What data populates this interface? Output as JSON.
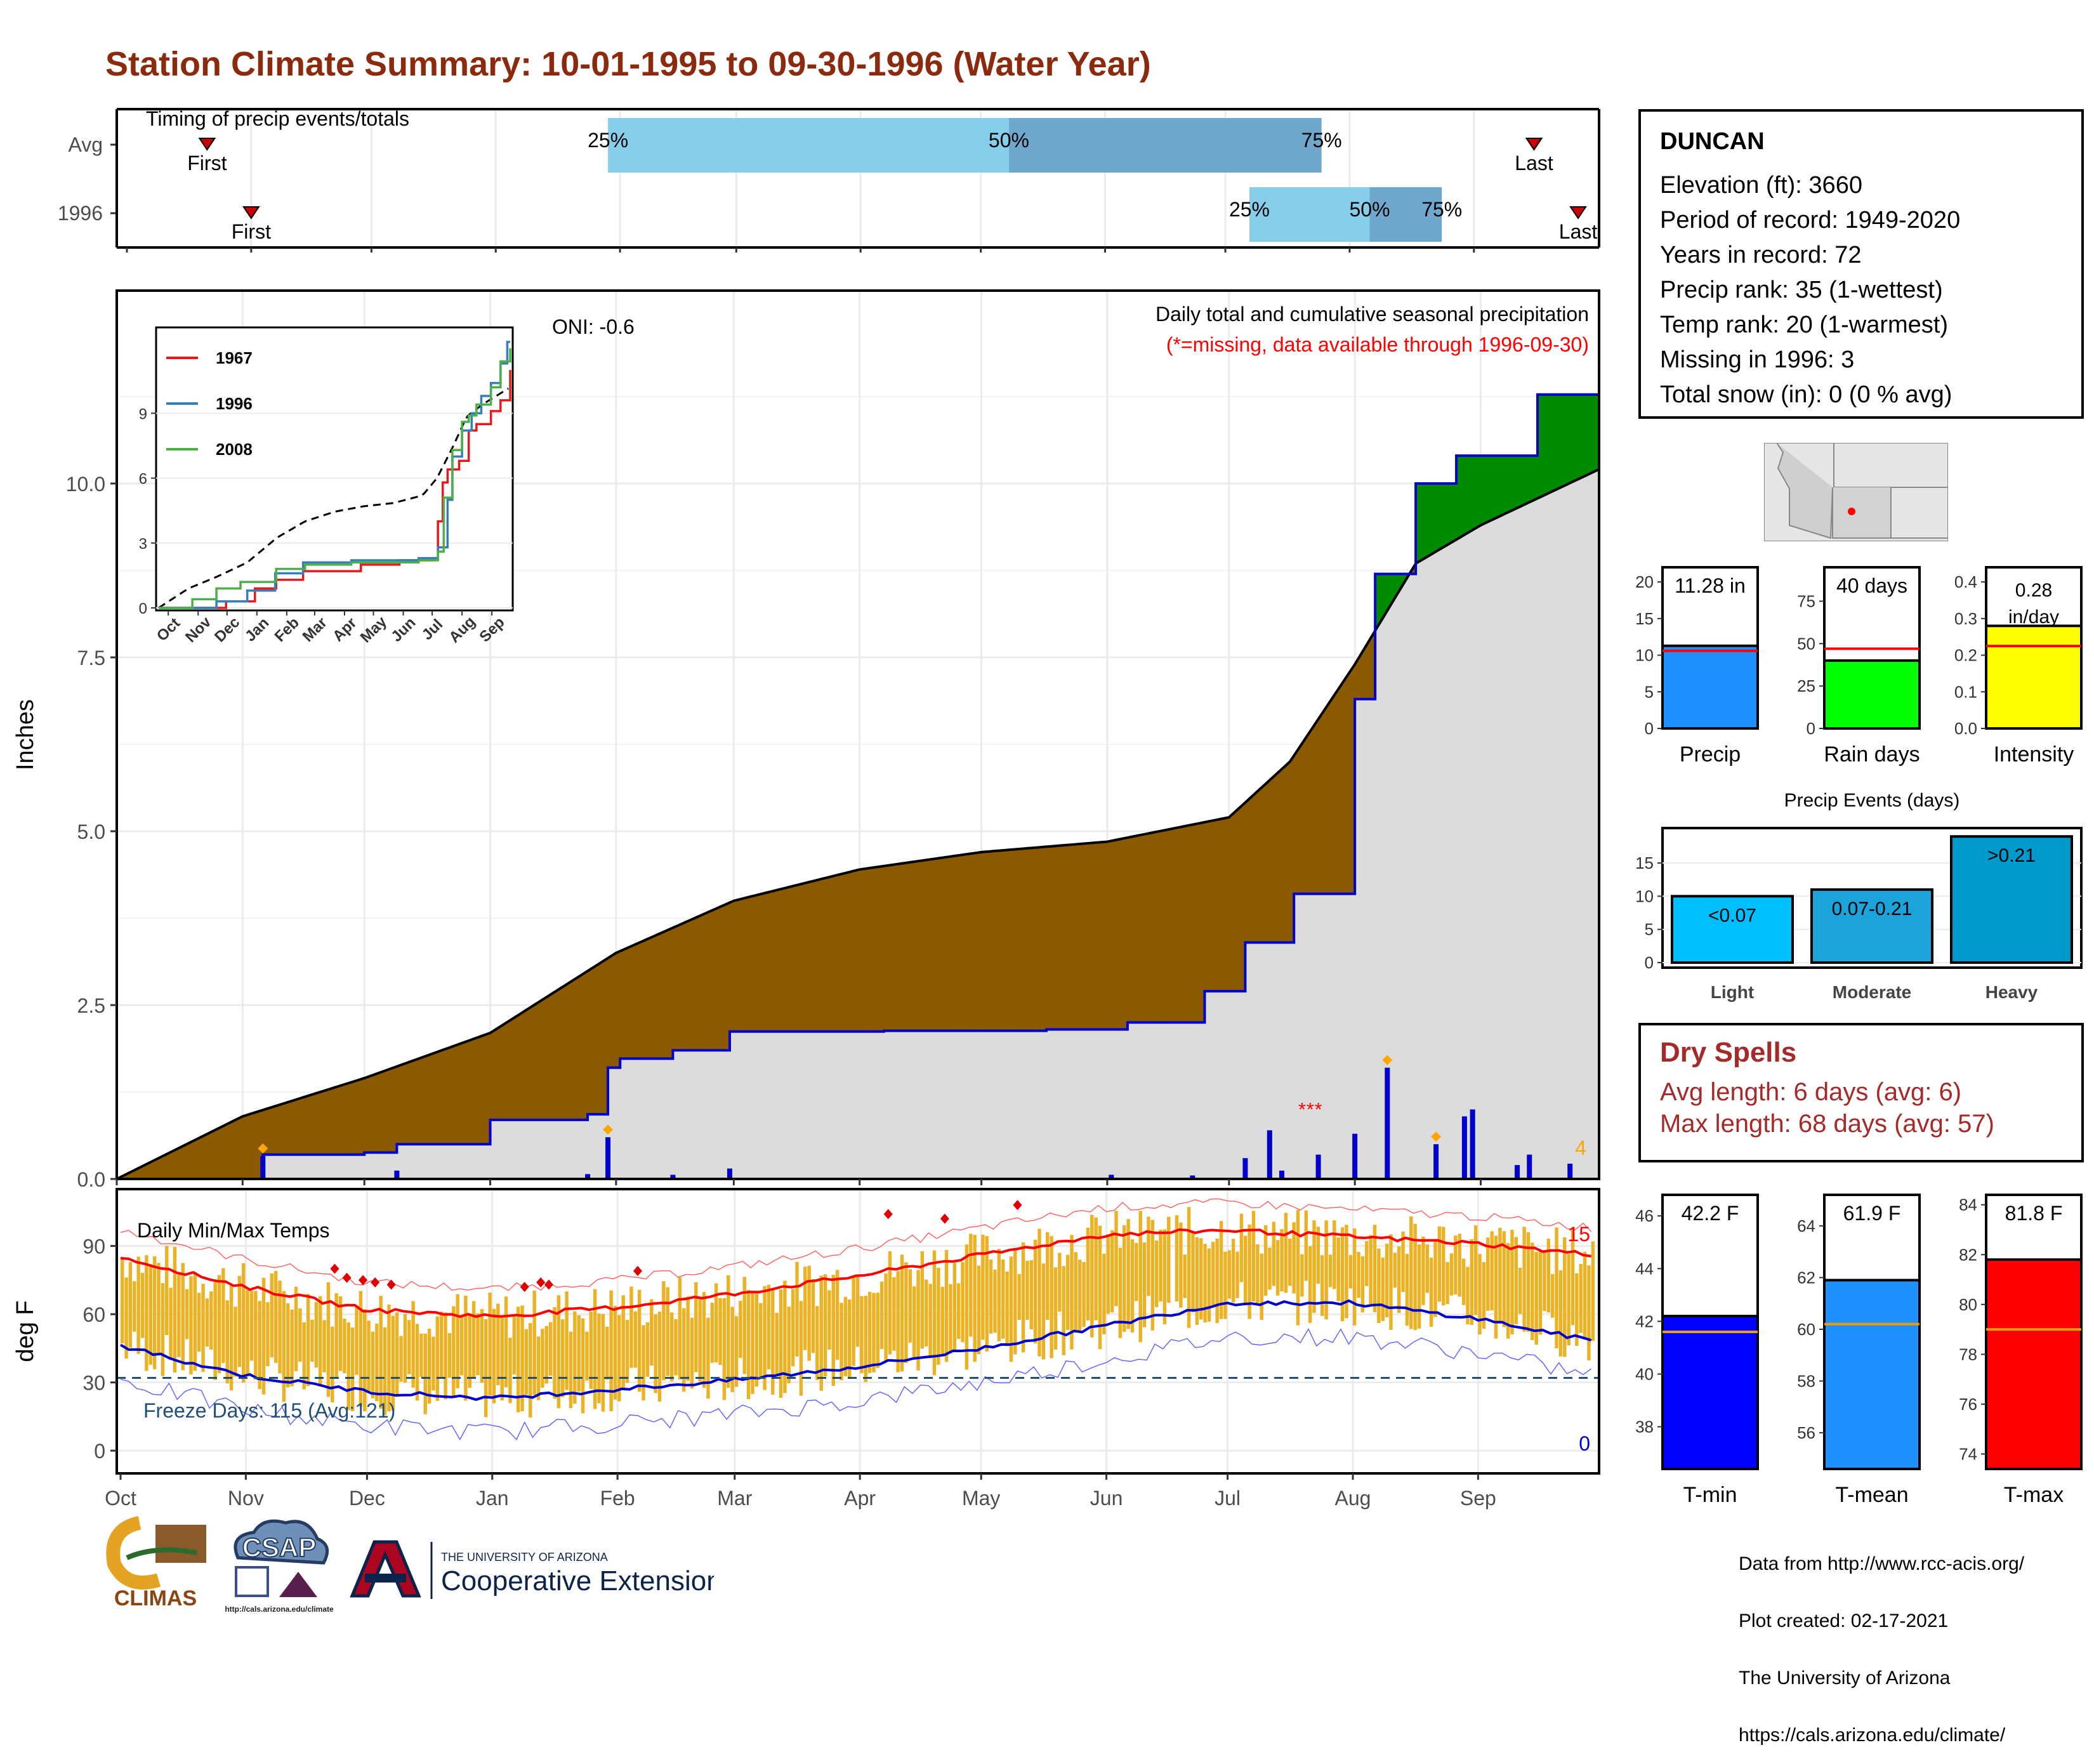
{
  "title": "Station Climate Summary: 10-01-1995 to 09-30-1996 (Water Year)",
  "timing": {
    "header": "Timing of precip events/totals",
    "rows": [
      {
        "label": "Avg",
        "first_label": "First",
        "last_label": "Last",
        "first_day": 20,
        "last_day": 351,
        "p25": 120,
        "p50": 220,
        "p75": 298
      },
      {
        "label": "1996",
        "first_label": "First",
        "last_label": "Last",
        "first_day": 31,
        "last_day": 362,
        "p25": 280,
        "p50": 310,
        "p75": 328
      }
    ],
    "pct_labels": [
      "25%",
      "50%",
      "75%"
    ],
    "colors": {
      "light": "#87CEEB",
      "dark": "#6FA8CC",
      "marker": "#CC0000"
    }
  },
  "precip": {
    "ylabel": "Inches",
    "yticks": [
      "0.0",
      "2.5",
      "5.0",
      "7.5",
      "10.0"
    ],
    "oni": "ONI: -0.6",
    "header": "Daily total and cumulative seasonal precipitation",
    "subheader": "(*=missing, data available through 1996-09-30)",
    "count_label": "4",
    "colors": {
      "deficit": "#8B5A00",
      "surplus": "#008B00",
      "cum": "#0000CC",
      "avg": "#000000",
      "fill": "#DCDCDC",
      "marker": "#FFA500",
      "missing": "#FF0000"
    }
  },
  "inset": {
    "xticks": [
      "Oct",
      "Nov",
      "Dec",
      "Jan",
      "Feb",
      "Mar",
      "Apr",
      "May",
      "Jun",
      "Jul",
      "Aug",
      "Sep"
    ],
    "yticks": [
      "0",
      "3",
      "6",
      "9"
    ],
    "legend": [
      {
        "label": "1967",
        "color": "#E41A1C"
      },
      {
        "label": "1996",
        "color": "#377EB8"
      },
      {
        "label": "2008",
        "color": "#4DAF4A"
      }
    ]
  },
  "temps": {
    "ylabel": "deg F",
    "header": "Daily Min/Max Temps",
    "yticks": [
      "0",
      "30",
      "60",
      "90"
    ],
    "freeze_label": "Freeze Days: 115 (Avg:121)",
    "hot_count": "15",
    "cold_count": "0",
    "months": [
      "Oct",
      "Nov",
      "Dec",
      "Jan",
      "Feb",
      "Mar",
      "Apr",
      "May",
      "Jun",
      "Jul",
      "Aug",
      "Sep"
    ]
  },
  "station": {
    "name": "DUNCAN",
    "lines": [
      "Elevation (ft): 3660",
      "Period of record: 1949-2020",
      "Years in record: 72",
      "Precip rank: 35 (1-wettest)",
      "Temp rank: 20 (1-warmest)",
      "Missing in 1996: 3",
      "Total snow (in): 0 (0 % avg)"
    ]
  },
  "minibars": [
    {
      "label": "Precip",
      "value_label": "11.28 in",
      "value": 11.28,
      "avg": 10.6,
      "ymax": 22,
      "ticks": [
        "0",
        "5",
        "10",
        "15",
        "20"
      ],
      "tickvals": [
        0,
        5,
        10,
        15,
        20
      ],
      "color": "#1E90FF"
    },
    {
      "label": "Rain days",
      "value_label": "40 days",
      "value": 40,
      "avg": 47,
      "ymax": 95,
      "ticks": [
        "0",
        "25",
        "50",
        "75"
      ],
      "tickvals": [
        0,
        25,
        50,
        75
      ],
      "color": "#00FF00"
    },
    {
      "label": "Intensity",
      "value_label": "0.28 in/day",
      "value": 0.28,
      "avg": 0.225,
      "ymax": 0.44,
      "ticks": [
        "0.0",
        "0.1",
        "0.2",
        "0.3",
        "0.4"
      ],
      "tickvals": [
        0,
        0.1,
        0.2,
        0.3,
        0.4
      ],
      "color": "#FFFF00"
    }
  ],
  "events": {
    "title": "Precip Events (days)",
    "categories": [
      "Light",
      "Moderate",
      "Heavy"
    ],
    "bar_labels": [
      "<0.07",
      "0.07-0.21",
      ">0.21"
    ],
    "values": [
      10,
      11,
      19
    ],
    "yticks": [
      "0",
      "5",
      "10",
      "15"
    ],
    "colors": [
      "#00BFFF",
      "#1CA3DA",
      "#0099CC"
    ]
  },
  "dry_spells": {
    "title": "Dry Spells",
    "avg_length": "Avg length: 6 days (avg: 6)",
    "max_length": "Max length: 68 days (avg: 57)"
  },
  "tempbars": [
    {
      "label": "T-min",
      "value_label": "42.2 F",
      "value": 42.2,
      "avg": 41.6,
      "ymin": 36.4,
      "ymax": 46.8,
      "ticks": [
        "38",
        "40",
        "42",
        "44",
        "46"
      ],
      "tickvals": [
        38,
        40,
        42,
        44,
        46
      ],
      "color": "#0000FF"
    },
    {
      "label": "T-mean",
      "value_label": "61.9 F",
      "value": 61.9,
      "avg": 60.2,
      "ymin": 54.6,
      "ymax": 65.2,
      "ticks": [
        "56",
        "58",
        "60",
        "62",
        "64"
      ],
      "tickvals": [
        56,
        58,
        60,
        62,
        64
      ],
      "color": "#1E90FF"
    },
    {
      "label": "T-max",
      "value_label": "81.8 F",
      "value": 81.8,
      "avg": 79.0,
      "ymin": 73.4,
      "ymax": 84.4,
      "ticks": [
        "74",
        "76",
        "78",
        "80",
        "82",
        "84"
      ],
      "tickvals": [
        74,
        76,
        78,
        80,
        82,
        84
      ],
      "color": "#FF0000"
    }
  ],
  "credits": {
    "lines": [
      "Data from http://www.rcc-acis.org/",
      "Plot created: 02-17-2021",
      "The University of Arizona",
      "https://cals.arizona.edu/climate/"
    ]
  },
  "logos": {
    "climas": "CLIMAS",
    "csap": "CSAP",
    "csap_url": "http://cals.arizona.edu/climate",
    "ua_line1": "THE UNIVERSITY OF ARIZONA",
    "ua_line2": "Cooperative Extension"
  },
  "chart_data": [
    {
      "type": "line",
      "title": "Daily total and cumulative seasonal precipitation",
      "ylabel": "Inches",
      "x_unit": "day of water year (Oct 1 = 0)",
      "ylim": [
        0,
        12.5
      ],
      "series": [
        {
          "name": "Avg cumulative",
          "x": [
            0,
            31,
            61,
            92,
            123,
            152,
            183,
            213,
            244,
            274,
            289,
            305,
            320,
            336,
            365
          ],
          "values": [
            0,
            0.9,
            1.45,
            2.1,
            3.25,
            4.0,
            4.45,
            4.7,
            4.85,
            5.2,
            6.0,
            7.4,
            8.85,
            9.4,
            10.2
          ]
        },
        {
          "name": "1996 cumulative",
          "x": [
            0,
            31,
            36,
            61,
            69,
            92,
            116,
            121,
            124,
            137,
            151,
            189,
            229,
            249,
            268,
            278,
            290,
            305,
            310,
            320,
            330,
            350,
            365
          ],
          "values": [
            0,
            0,
            0.35,
            0.38,
            0.5,
            0.85,
            0.93,
            1.6,
            1.73,
            1.85,
            2.12,
            2.13,
            2.15,
            2.25,
            2.7,
            3.4,
            4.1,
            6.9,
            8.7,
            10.0,
            10.4,
            11.28,
            11.28
          ]
        }
      ],
      "daily_precip_bars": [
        {
          "day": 36,
          "value": 0.33
        },
        {
          "day": 69,
          "value": 0.12
        },
        {
          "day": 116,
          "value": 0.07
        },
        {
          "day": 121,
          "value": 0.6
        },
        {
          "day": 137,
          "value": 0.06
        },
        {
          "day": 151,
          "value": 0.15
        },
        {
          "day": 245,
          "value": 0.06
        },
        {
          "day": 265,
          "value": 0.05
        },
        {
          "day": 278,
          "value": 0.3
        },
        {
          "day": 284,
          "value": 0.7
        },
        {
          "day": 287,
          "value": 0.12
        },
        {
          "day": 296,
          "value": 0.35
        },
        {
          "day": 305,
          "value": 0.65
        },
        {
          "day": 313,
          "value": 1.6
        },
        {
          "day": 325,
          "value": 0.5
        },
        {
          "day": 332,
          "value": 0.9
        },
        {
          "day": 334,
          "value": 1.0
        },
        {
          "day": 345,
          "value": 0.2
        },
        {
          "day": 348,
          "value": 0.35
        },
        {
          "day": 358,
          "value": 0.22
        }
      ],
      "oni": -0.6
    },
    {
      "type": "line",
      "title": "Daily Min/Max Temps",
      "ylabel": "deg F",
      "ylim": [
        -10,
        115
      ],
      "series": [
        {
          "name": "Avg max",
          "x": [
            0,
            31,
            61,
            92,
            123,
            152,
            183,
            213,
            244,
            274,
            305,
            336,
            365
          ],
          "values": [
            85,
            72,
            62,
            59,
            63,
            69,
            77,
            86,
            95,
            97,
            94,
            91,
            86
          ]
        },
        {
          "name": "Avg min",
          "x": [
            0,
            31,
            61,
            92,
            123,
            152,
            183,
            213,
            244,
            274,
            305,
            336,
            365
          ],
          "values": [
            46,
            33,
            26,
            23,
            27,
            31,
            37,
            45,
            55,
            65,
            65,
            58,
            48
          ]
        }
      ],
      "freeze_days": 115,
      "freeze_days_avg": 121
    }
  ]
}
